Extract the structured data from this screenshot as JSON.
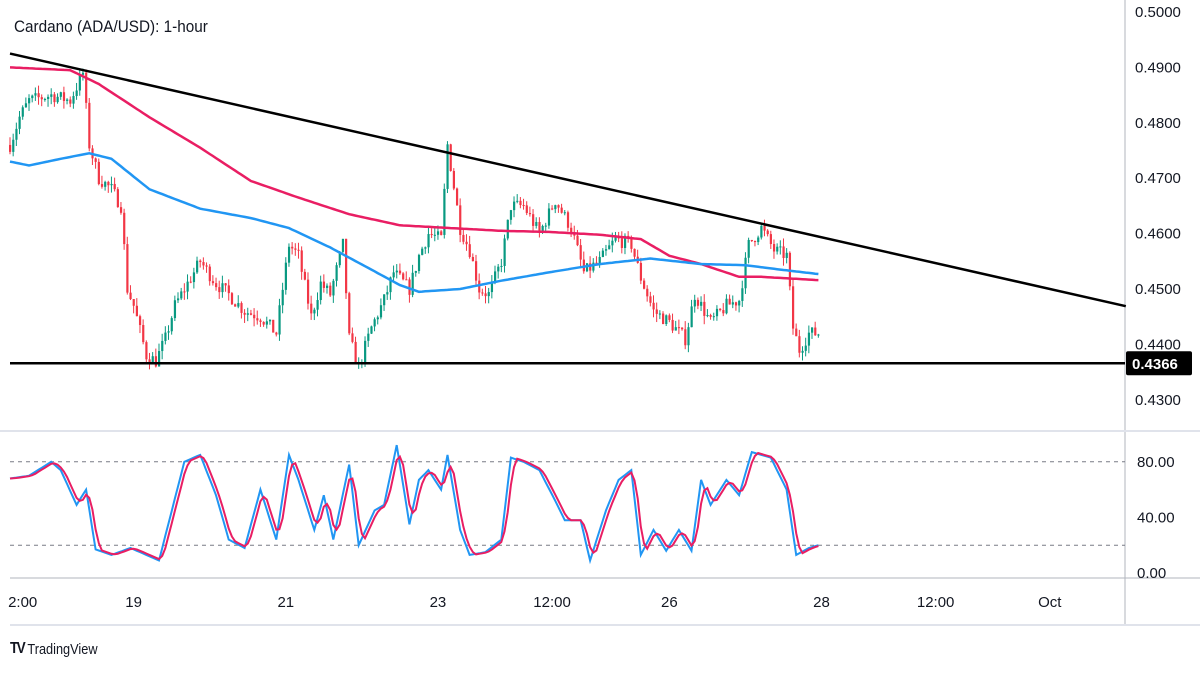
{
  "chart_data": {
    "type": "candlestick",
    "title": "Cardano (ADA/USD): 1-hour",
    "branding": "TradingView",
    "price_axis": {
      "ticks": [
        "0.5000",
        "0.4900",
        "0.4800",
        "0.4700",
        "0.4600",
        "0.4500",
        "0.4400",
        "0.4300"
      ],
      "range": [
        0.4245,
        0.5015
      ]
    },
    "current_level_label": "0.4366",
    "support_level": 0.4366,
    "trendline": {
      "start_hour": 0,
      "start_price": 0.4925,
      "end_hour": 352,
      "end_price": 0.4469
    },
    "time_axis": {
      "labels": [
        {
          "text": "2:00",
          "hour": 4
        },
        {
          "text": "19",
          "hour": 39
        },
        {
          "text": "21",
          "hour": 87
        },
        {
          "text": "23",
          "hour": 135
        },
        {
          "text": "12:00",
          "hour": 171
        },
        {
          "text": "26",
          "hour": 208
        },
        {
          "text": "28",
          "hour": 256
        },
        {
          "text": "12:00",
          "hour": 292
        },
        {
          "text": "Oct",
          "hour": 328
        }
      ]
    },
    "price_path": [
      [
        0,
        0.476
      ],
      [
        3,
        0.481
      ],
      [
        6,
        0.484
      ],
      [
        13,
        0.485
      ],
      [
        19,
        0.484
      ],
      [
        23,
        0.489
      ],
      [
        25,
        0.476
      ],
      [
        28,
        0.47
      ],
      [
        32,
        0.468
      ],
      [
        35,
        0.465
      ],
      [
        37,
        0.45
      ],
      [
        39,
        0.447
      ],
      [
        43,
        0.438
      ],
      [
        46,
        0.437
      ],
      [
        49,
        0.441
      ],
      [
        52,
        0.447
      ],
      [
        57,
        0.452
      ],
      [
        60,
        0.455
      ],
      [
        65,
        0.451
      ],
      [
        69,
        0.449
      ],
      [
        74,
        0.446
      ],
      [
        79,
        0.445
      ],
      [
        84,
        0.442
      ],
      [
        88,
        0.458
      ],
      [
        91,
        0.456
      ],
      [
        95,
        0.445
      ],
      [
        98,
        0.451
      ],
      [
        101,
        0.449
      ],
      [
        105,
        0.458
      ],
      [
        107,
        0.441
      ],
      [
        110,
        0.436
      ],
      [
        114,
        0.443
      ],
      [
        118,
        0.448
      ],
      [
        121,
        0.453
      ],
      [
        126,
        0.45
      ],
      [
        129,
        0.456
      ],
      [
        132,
        0.46
      ],
      [
        136,
        0.459
      ],
      [
        138,
        0.476
      ],
      [
        142,
        0.461
      ],
      [
        145,
        0.457
      ],
      [
        148,
        0.45
      ],
      [
        151,
        0.449
      ],
      [
        155,
        0.455
      ],
      [
        158,
        0.465
      ],
      [
        162,
        0.465
      ],
      [
        167,
        0.46
      ],
      [
        172,
        0.466
      ],
      [
        177,
        0.461
      ],
      [
        181,
        0.453
      ],
      [
        186,
        0.455
      ],
      [
        191,
        0.459
      ],
      [
        196,
        0.458
      ],
      [
        199,
        0.452
      ],
      [
        203,
        0.446
      ],
      [
        208,
        0.444
      ],
      [
        213,
        0.441
      ],
      [
        216,
        0.449
      ],
      [
        221,
        0.444
      ],
      [
        226,
        0.447
      ],
      [
        230,
        0.448
      ],
      [
        233,
        0.458
      ],
      [
        237,
        0.461
      ],
      [
        241,
        0.457
      ],
      [
        245,
        0.456
      ],
      [
        247,
        0.443
      ],
      [
        249,
        0.439
      ],
      [
        252,
        0.442
      ],
      [
        255,
        0.442
      ]
    ],
    "ma_slow": {
      "color": "#e91e63",
      "points": [
        [
          0,
          0.49
        ],
        [
          19,
          0.4895
        ],
        [
          28,
          0.487
        ],
        [
          44,
          0.481
        ],
        [
          60,
          0.4755
        ],
        [
          76,
          0.4695
        ],
        [
          91,
          0.4665
        ],
        [
          107,
          0.4635
        ],
        [
          123,
          0.4615
        ],
        [
          139,
          0.461
        ],
        [
          155,
          0.4605
        ],
        [
          170,
          0.4603
        ],
        [
          186,
          0.4598
        ],
        [
          199,
          0.459
        ],
        [
          208,
          0.456
        ],
        [
          218,
          0.4545
        ],
        [
          230,
          0.4522
        ],
        [
          237,
          0.4522
        ],
        [
          255,
          0.4516
        ]
      ]
    },
    "ma_fast": {
      "color": "#2196f3",
      "points": [
        [
          0,
          0.473
        ],
        [
          6,
          0.4723
        ],
        [
          16,
          0.4735
        ],
        [
          25,
          0.4745
        ],
        [
          32,
          0.4735
        ],
        [
          44,
          0.468
        ],
        [
          60,
          0.4645
        ],
        [
          76,
          0.4628
        ],
        [
          88,
          0.461
        ],
        [
          101,
          0.4575
        ],
        [
          114,
          0.4535
        ],
        [
          123,
          0.4507
        ],
        [
          129,
          0.4495
        ],
        [
          142,
          0.45
        ],
        [
          155,
          0.4515
        ],
        [
          170,
          0.453
        ],
        [
          186,
          0.4545
        ],
        [
          202,
          0.4555
        ],
        [
          218,
          0.4545
        ],
        [
          232,
          0.4543
        ],
        [
          243,
          0.4535
        ],
        [
          255,
          0.4527
        ]
      ]
    },
    "stochastic": {
      "ticks": [
        "80.00",
        "40.00",
        "0.00"
      ],
      "levels": [
        80,
        20
      ],
      "range": [
        0,
        100
      ],
      "k_color": "#2196f3",
      "d_color": "#e91e63",
      "k_points": [
        [
          0,
          68
        ],
        [
          6,
          70
        ],
        [
          13,
          80
        ],
        [
          16,
          74
        ],
        [
          21,
          49
        ],
        [
          24,
          60
        ],
        [
          27,
          17
        ],
        [
          32,
          13
        ],
        [
          38,
          18
        ],
        [
          43,
          13
        ],
        [
          47,
          9
        ],
        [
          55,
          80
        ],
        [
          60,
          85
        ],
        [
          65,
          56
        ],
        [
          69,
          24
        ],
        [
          74,
          18
        ],
        [
          79,
          60
        ],
        [
          84,
          24
        ],
        [
          88,
          85
        ],
        [
          91,
          67
        ],
        [
          96,
          31
        ],
        [
          99,
          56
        ],
        [
          102,
          24
        ],
        [
          107,
          78
        ],
        [
          110,
          20
        ],
        [
          115,
          45
        ],
        [
          118,
          49
        ],
        [
          122,
          92
        ],
        [
          126,
          35
        ],
        [
          129,
          67
        ],
        [
          132,
          74
        ],
        [
          136,
          60
        ],
        [
          138,
          85
        ],
        [
          142,
          31
        ],
        [
          145,
          13
        ],
        [
          150,
          15
        ],
        [
          155,
          24
        ],
        [
          158,
          83
        ],
        [
          162,
          80
        ],
        [
          167,
          74
        ],
        [
          172,
          52
        ],
        [
          175,
          38
        ],
        [
          180,
          38
        ],
        [
          183,
          9
        ],
        [
          188,
          45
        ],
        [
          192,
          67
        ],
        [
          196,
          74
        ],
        [
          199,
          13
        ],
        [
          203,
          31
        ],
        [
          207,
          16
        ],
        [
          211,
          31
        ],
        [
          215,
          16
        ],
        [
          218,
          67
        ],
        [
          221,
          49
        ],
        [
          226,
          67
        ],
        [
          230,
          56
        ],
        [
          234,
          87
        ],
        [
          240,
          83
        ],
        [
          245,
          60
        ],
        [
          248,
          13
        ],
        [
          252,
          18
        ],
        [
          255,
          20
        ]
      ]
    }
  }
}
